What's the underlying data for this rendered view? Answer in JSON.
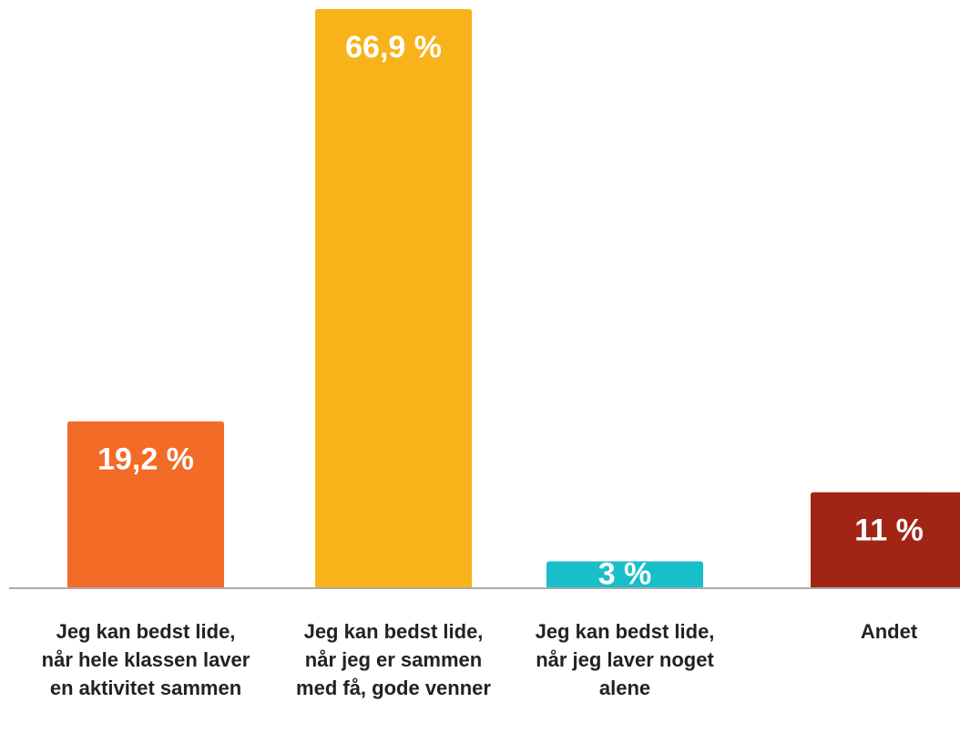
{
  "chart_data": {
    "type": "bar",
    "categories": [
      "Jeg kan bedst lide, når hele klassen laver en aktivitet sammen",
      "Jeg kan bedst lide, når jeg er sammen med få, gode venner",
      "Jeg kan bedst lide, når jeg laver noget alene",
      "Andet"
    ],
    "values": [
      19.2,
      66.9,
      3,
      11
    ],
    "value_labels": [
      "19,2 %",
      "66,9 %",
      "3 %",
      "11 %"
    ],
    "colors": [
      "#f26b27",
      "#f8b31a",
      "#18bec9",
      "#a12515"
    ]
  }
}
